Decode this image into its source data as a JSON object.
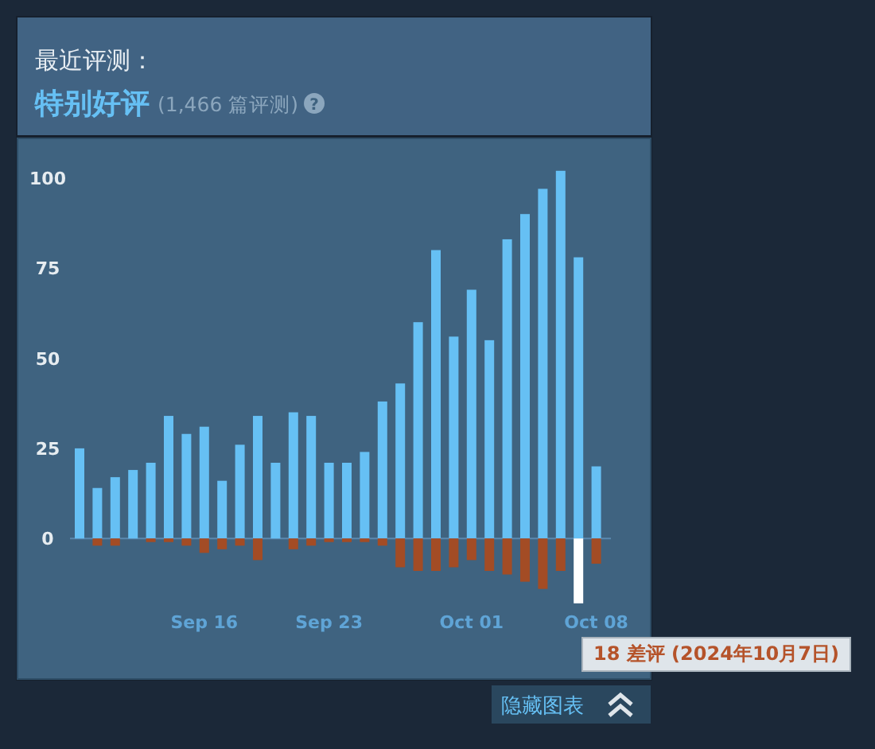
{
  "chart_data": {
    "type": "bar",
    "title": "最近评测：",
    "subtitle": "特别好评",
    "annotations": [
      "(1,466 篇评测)",
      "?",
      "18 差评 (2024年10月7日)",
      "隐藏图表"
    ],
    "categories": [
      null,
      null,
      null,
      null,
      null,
      null,
      null,
      "Sep 16",
      null,
      null,
      null,
      null,
      null,
      null,
      "Sep 23",
      null,
      null,
      null,
      null,
      null,
      null,
      null,
      "Oct 01",
      null,
      null,
      null,
      null,
      null,
      null,
      "Oct 08"
    ],
    "stacked": true,
    "series": [
      {
        "color": "#66c0f4",
        "values": [
          25,
          14,
          17,
          19,
          21,
          34,
          29,
          31,
          16,
          26,
          34,
          21,
          35,
          34,
          21,
          21,
          24,
          38,
          43,
          60,
          80,
          56,
          69,
          55,
          83,
          90,
          97,
          102,
          78,
          20
        ]
      },
      {
        "colors": [
          "#a34c25",
          "#a34c25",
          "#a34c25",
          "#a34c25",
          "#a34c25",
          "#a34c25",
          "#a34c25",
          "#a34c25",
          "#a34c25",
          "#a34c25",
          "#a34c25",
          "#a34c25",
          "#a34c25",
          "#a34c25",
          "#a34c25",
          "#a34c25",
          "#a34c25",
          "#a34c25",
          "#a34c25",
          "#a34c25",
          "#a34c25",
          "#a34c25",
          "#a34c25",
          "#a34c25",
          "#a34c25",
          "#a34c25",
          "#a34c25",
          "#a34c25",
          "#ffffff",
          "#a34c25"
        ],
        "values": [
          0,
          -2,
          -2,
          0,
          -1,
          -1,
          -2,
          -4,
          -3,
          -2,
          -6,
          0,
          -3,
          -2,
          -1,
          -1,
          -1,
          -2,
          -8,
          -9,
          -9,
          -8,
          -6,
          -9,
          -10,
          -12,
          -14,
          -9,
          -18,
          -7
        ]
      }
    ],
    "ref_lines": [
      {
        "axis": "y",
        "value": 0,
        "color": "#5b88b0"
      }
    ],
    "ylim": [
      -39,
      111
    ],
    "yticks": [
      0,
      25,
      50,
      75,
      100
    ],
    "grid": false
  }
}
